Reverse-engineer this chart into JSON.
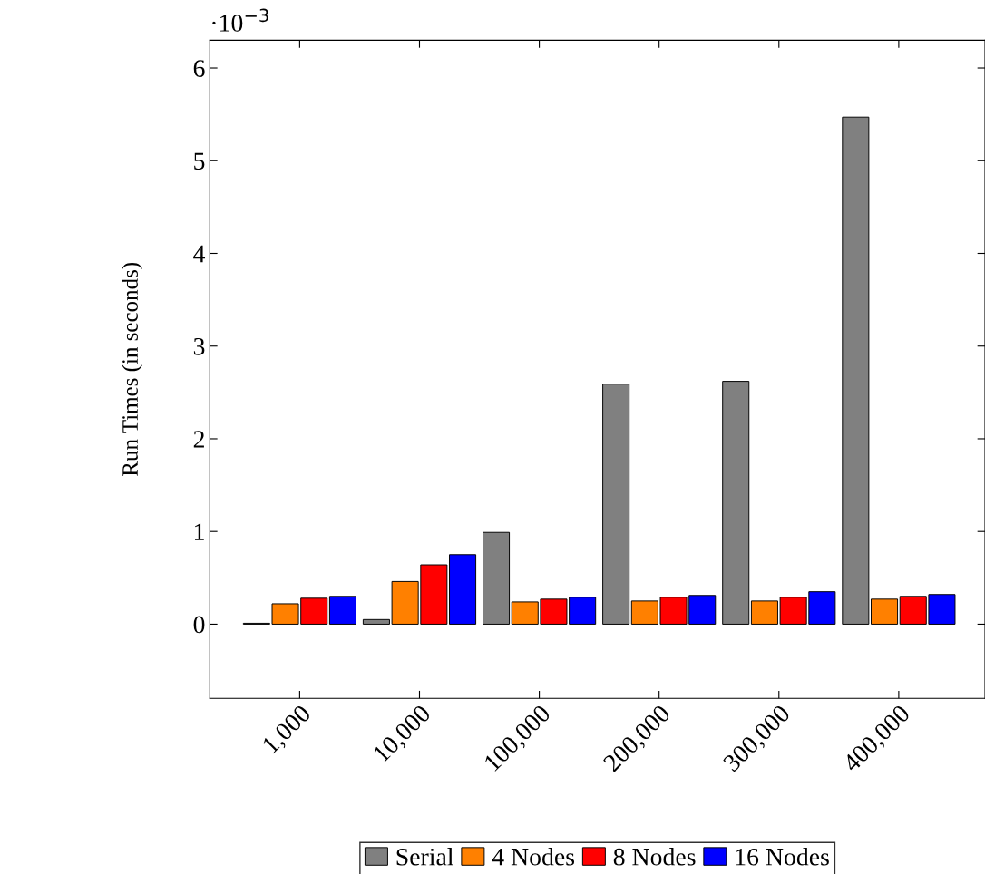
{
  "chart_data": {
    "type": "bar",
    "ylabel": "Run Times (in seconds)",
    "categories": [
      "1,000",
      "10,000",
      "100,000",
      "200,000",
      "300,000",
      "400,000"
    ],
    "series": [
      {
        "name": "Serial",
        "color": "#808080",
        "values": [
          0.01,
          0.05,
          0.99,
          2.59,
          2.62,
          5.47
        ]
      },
      {
        "name": "4 Nodes",
        "color": "#ff8000",
        "values": [
          0.22,
          0.46,
          0.24,
          0.25,
          0.25,
          0.27
        ]
      },
      {
        "name": "8 Nodes",
        "color": "#ff0000",
        "values": [
          0.28,
          0.64,
          0.27,
          0.29,
          0.29,
          0.3
        ]
      },
      {
        "name": "16 Nodes",
        "color": "#0000ff",
        "values": [
          0.3,
          0.75,
          0.29,
          0.31,
          0.35,
          0.32
        ]
      }
    ],
    "ylim": [
      -0.8,
      6.3
    ],
    "yticks": [
      0,
      1,
      2,
      3,
      4,
      5,
      6
    ],
    "annotations": [
      "·10$^{−3}$"
    ],
    "legend": "bottom",
    "grid": false
  }
}
